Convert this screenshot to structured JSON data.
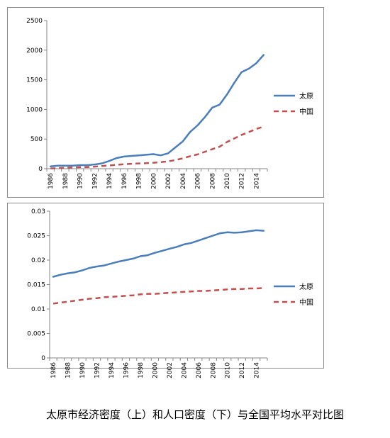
{
  "caption": "太原市经济密度（上）和人口密度（下）与全国平均水平对比图",
  "chart_data": [
    {
      "type": "line",
      "x": [
        1986,
        1987,
        1988,
        1989,
        1990,
        1991,
        1992,
        1993,
        1994,
        1995,
        1996,
        1997,
        1998,
        1999,
        2000,
        2001,
        2002,
        2003,
        2004,
        2005,
        2006,
        2007,
        2008,
        2009,
        2010,
        2011,
        2012,
        2013,
        2014,
        2015
      ],
      "x_tick_labels": [
        "1986",
        "1988",
        "1990",
        "1992",
        "1994",
        "1996",
        "1998",
        "2000",
        "2002",
        "2004",
        "2006",
        "2008",
        "2010",
        "2012",
        "2014"
      ],
      "ylim": [
        0,
        2500
      ],
      "y_ticks": [
        "0",
        "500",
        "1000",
        "1500",
        "2000",
        "2500"
      ],
      "legend_position": "right",
      "series": [
        {
          "name": "太原",
          "color": "#4a7ebb",
          "style": "solid",
          "values": [
            40,
            50,
            50,
            50,
            60,
            60,
            70,
            90,
            130,
            180,
            205,
            215,
            225,
            235,
            245,
            225,
            260,
            360,
            460,
            620,
            730,
            870,
            1030,
            1080,
            1250,
            1450,
            1630,
            1690,
            1780,
            1920
          ]
        },
        {
          "name": "中国",
          "color": "#c0504d",
          "style": "dashed",
          "values": [
            5,
            10,
            15,
            20,
            25,
            28,
            35,
            45,
            55,
            65,
            75,
            82,
            88,
            92,
            100,
            110,
            125,
            145,
            175,
            210,
            240,
            285,
            330,
            370,
            450,
            510,
            570,
            620,
            670,
            710
          ]
        }
      ]
    },
    {
      "type": "line",
      "x": [
        1986,
        1987,
        1988,
        1989,
        1990,
        1991,
        1992,
        1993,
        1994,
        1995,
        1996,
        1997,
        1998,
        1999,
        2000,
        2001,
        2002,
        2003,
        2004,
        2005,
        2006,
        2007,
        2008,
        2009,
        2010,
        2011,
        2012,
        2013,
        2014,
        2015
      ],
      "x_tick_labels": [
        "1986",
        "1988",
        "1990",
        "1992",
        "1994",
        "1996",
        "1998",
        "2000",
        "2002",
        "2004",
        "2006",
        "2008",
        "2010",
        "2012",
        "2014"
      ],
      "ylim": [
        0,
        0.03
      ],
      "y_ticks": [
        "0",
        "0.005",
        "0.01",
        "0.015",
        "0.02",
        "0.025",
        "0.03"
      ],
      "legend_position": "right",
      "series": [
        {
          "name": "太原",
          "color": "#4a7ebb",
          "style": "solid",
          "values": [
            0.0166,
            0.017,
            0.0173,
            0.0175,
            0.0179,
            0.0184,
            0.0187,
            0.0189,
            0.0193,
            0.0197,
            0.02,
            0.0203,
            0.0208,
            0.021,
            0.0215,
            0.0219,
            0.0223,
            0.0227,
            0.0232,
            0.0235,
            0.024,
            0.0245,
            0.025,
            0.0255,
            0.0257,
            0.0256,
            0.0257,
            0.0259,
            0.0261,
            0.026
          ]
        },
        {
          "name": "中国",
          "color": "#c0504d",
          "style": "dashed",
          "values": [
            0.0111,
            0.0113,
            0.0115,
            0.0117,
            0.0119,
            0.0121,
            0.0122,
            0.0124,
            0.0125,
            0.0126,
            0.0127,
            0.0128,
            0.013,
            0.0131,
            0.0131,
            0.0132,
            0.0133,
            0.0134,
            0.0135,
            0.0136,
            0.0137,
            0.0137,
            0.0138,
            0.0139,
            0.014,
            0.0141,
            0.0141,
            0.0142,
            0.0142,
            0.0143
          ]
        }
      ]
    }
  ]
}
